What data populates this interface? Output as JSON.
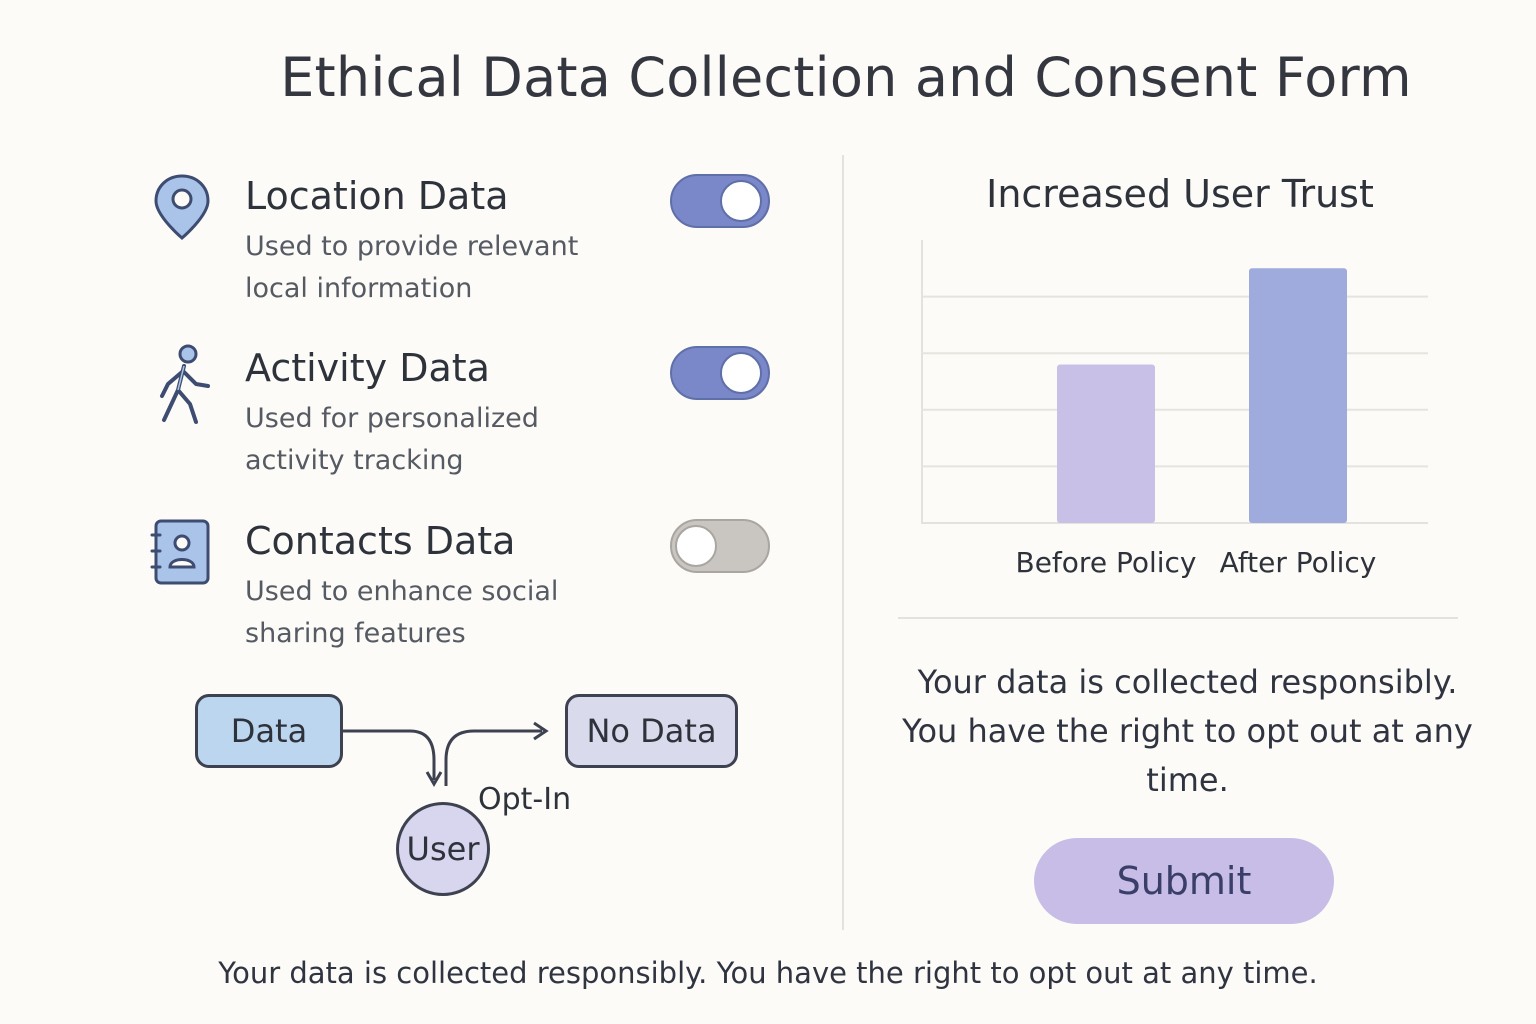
{
  "title": "Ethical Data Collection and Consent Form",
  "data_items": [
    {
      "name": "Location Data",
      "description": "Used to provide relevant local information",
      "icon": "location-pin-icon",
      "enabled": true
    },
    {
      "name": "Activity Data",
      "description": "Used for personalized activity tracking",
      "icon": "walking-person-icon",
      "enabled": true
    },
    {
      "name": "Contacts Data",
      "description": "Used to enhance social sharing features",
      "icon": "contacts-book-icon",
      "enabled": false
    }
  ],
  "flow": {
    "data_label": "Data",
    "no_data_label": "No Data",
    "user_label": "User",
    "opt_in_label": "Opt-In"
  },
  "chart_data": {
    "type": "bar",
    "title": "Increased User Trust",
    "categories": [
      "Before Policy",
      "After Policy"
    ],
    "values": [
      56,
      90
    ],
    "ylim": [
      0,
      100
    ],
    "grid": true,
    "colors": [
      "#c9c0e8",
      "#9fabdc"
    ]
  },
  "right_message": "Your data is collected responsibly. You have the right to opt out at any time.",
  "submit_label": "Submit",
  "footer": "Your data is collected responsibly. You have the right to opt out at any time.",
  "colors": {
    "toggle_on": "#7a87c8",
    "toggle_off": "#c9c6c1",
    "submit_bg": "#c7bde6",
    "icon_fill": "#a9c4e8",
    "icon_stroke": "#3d4c70"
  }
}
